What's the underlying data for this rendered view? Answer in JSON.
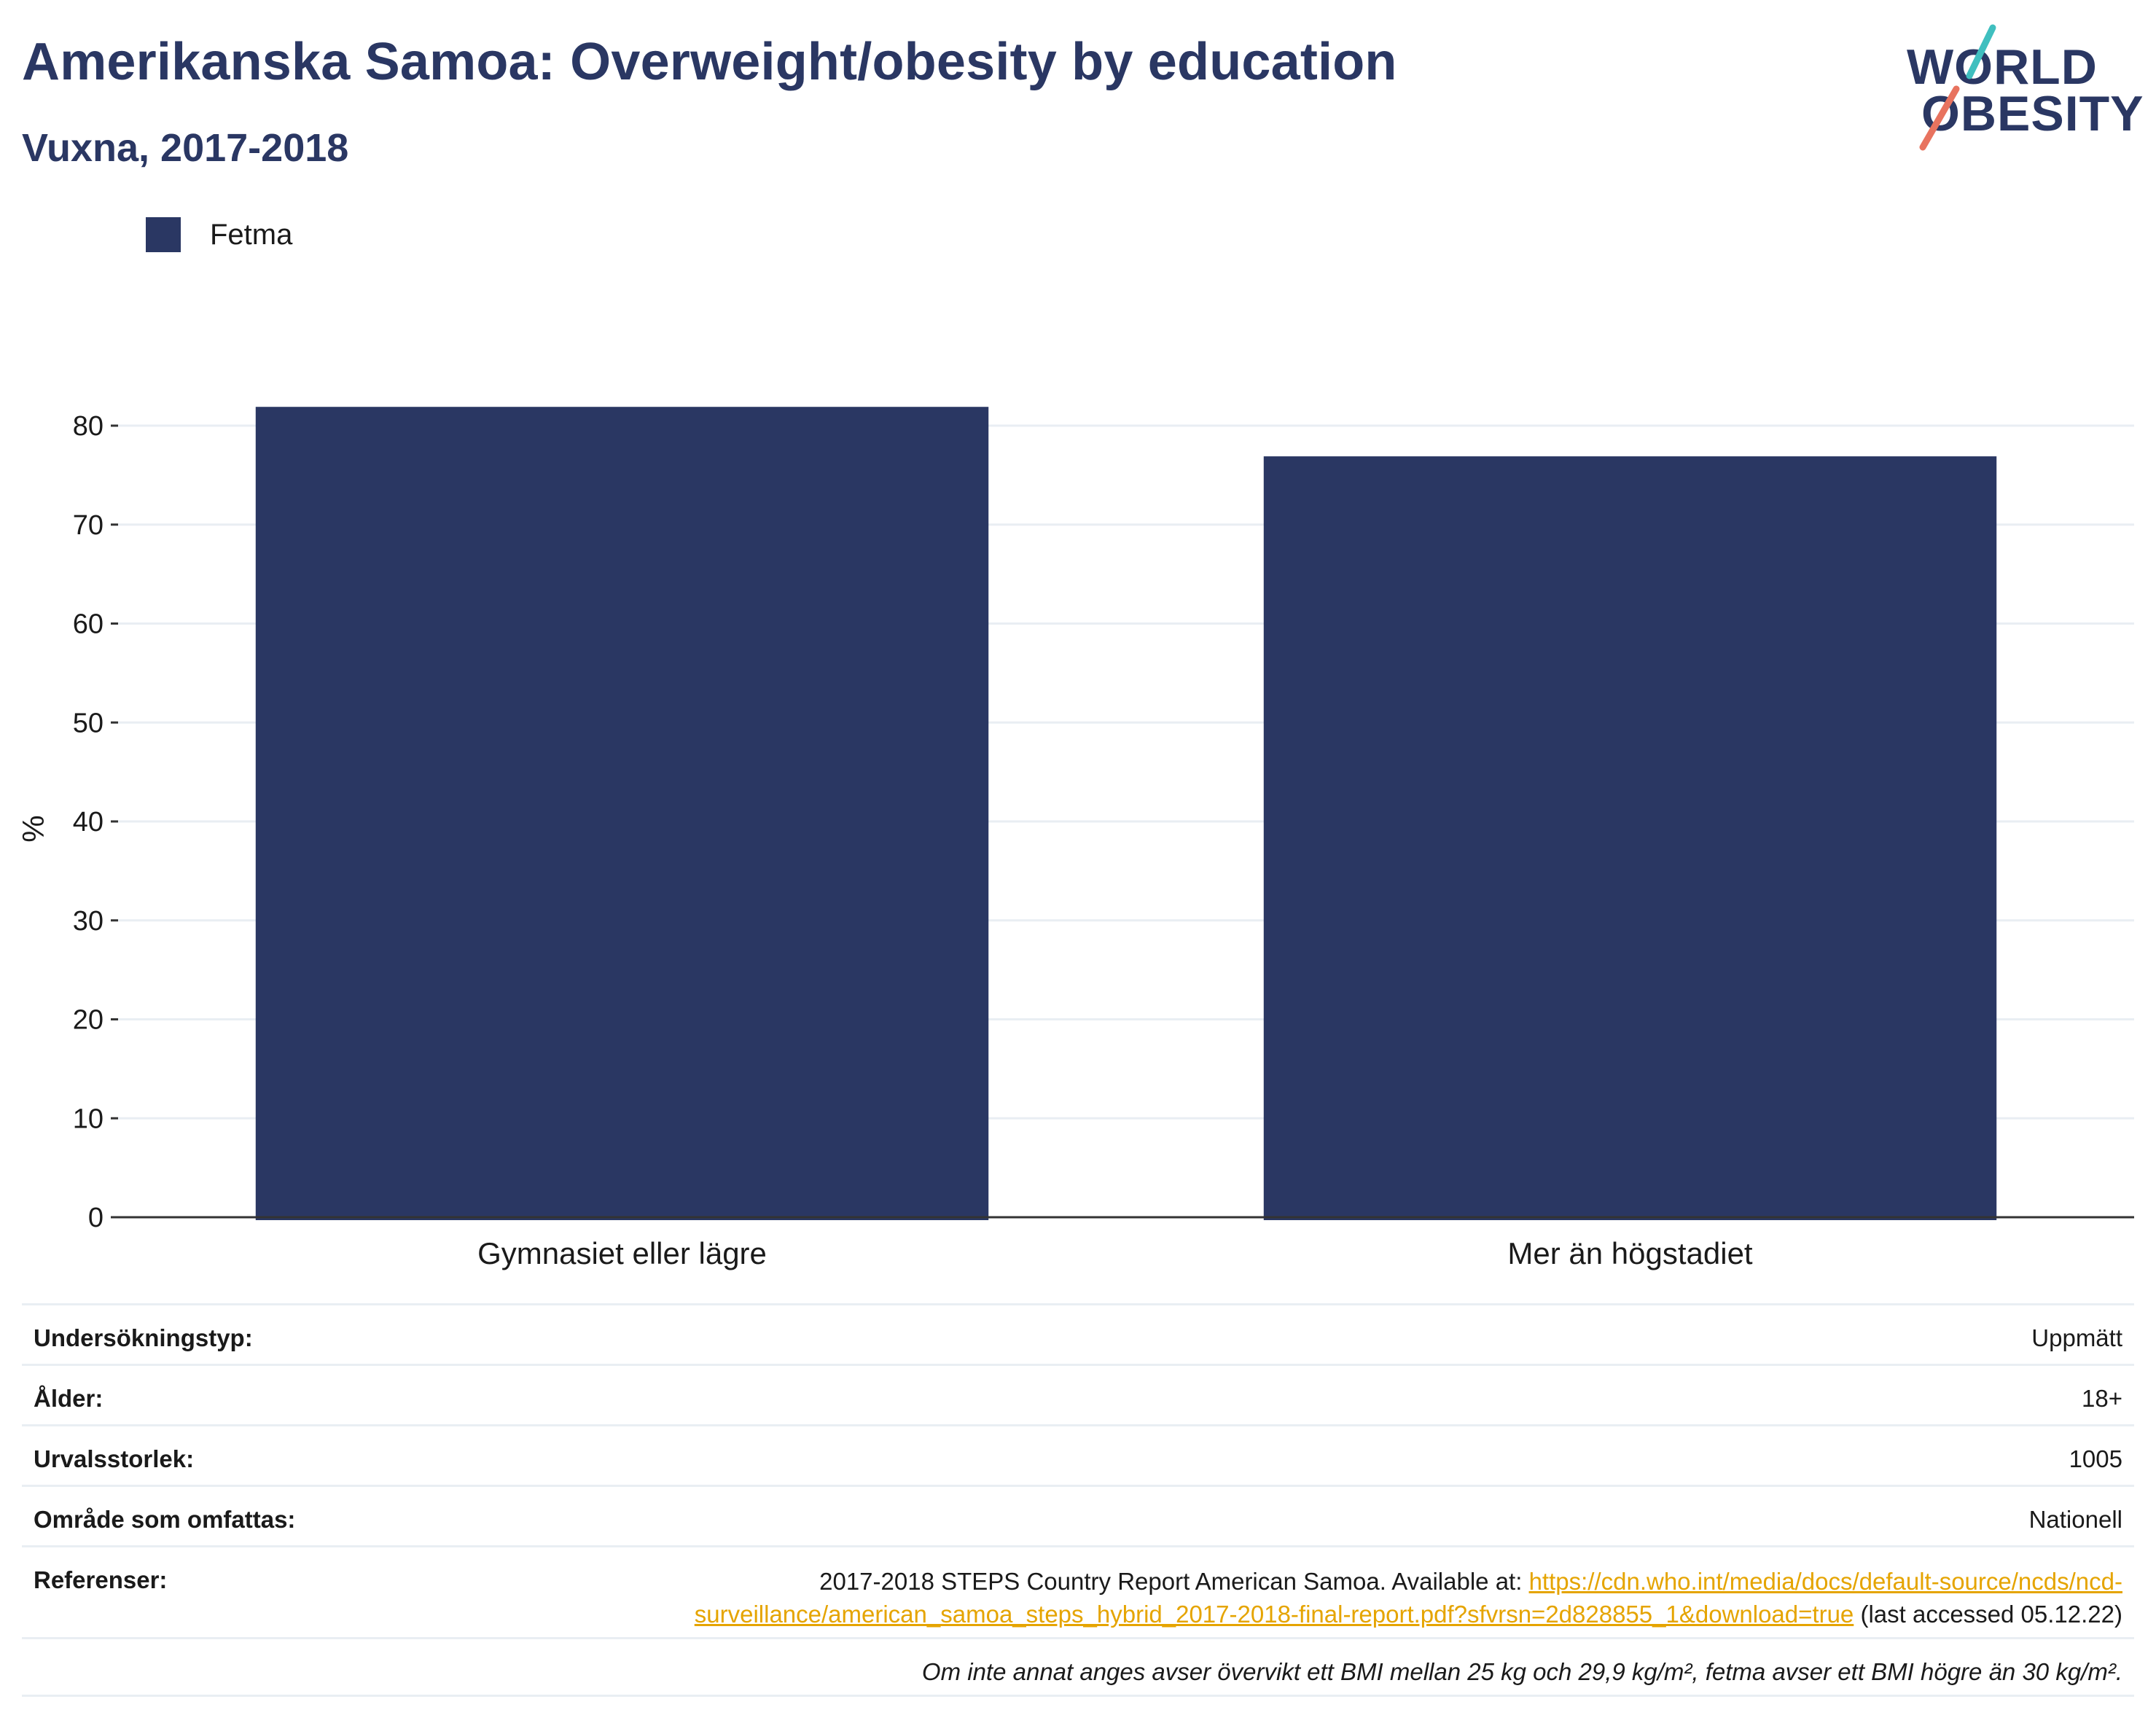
{
  "title": "Amerikanska Samoa: Overweight/obesity by education",
  "subtitle": "Vuxna, 2017-2018",
  "logo": {
    "line1": "WORLD",
    "line2": "OBESITY",
    "accent_colors": [
      "#3fbfbf",
      "#e8735f"
    ]
  },
  "colors": {
    "bar": "#2a3763",
    "title": "#2a3763",
    "grid": "#e9eef3",
    "link": "#e5a400"
  },
  "chart_data": {
    "type": "bar",
    "categories": [
      "Gymnasiet eller lägre",
      "Mer än högstadiet"
    ],
    "series": [
      {
        "name": "Fetma",
        "values": [
          81.9,
          76.9
        ]
      }
    ],
    "ylabel": "%",
    "ylim": [
      0,
      80
    ],
    "yticks": [
      0,
      10,
      20,
      30,
      40,
      50,
      60,
      70,
      80
    ],
    "grid": true,
    "legend_position": "top-left"
  },
  "info": {
    "survey_type_label": "Undersökningstyp:",
    "survey_type_value": "Uppmätt",
    "age_label": "Ålder:",
    "age_value": "18+",
    "sample_label": "Urvalsstorlek:",
    "sample_value": "1005",
    "area_label": "Område som omfattas:",
    "area_value": "Nationell",
    "references_label": "Referenser:",
    "references_prefix": "2017-2018 STEPS Country Report American Samoa. Available at: ",
    "references_link": "https://cdn.who.int/media/docs/default-source/ncds/ncd-surveillance/american_samoa_steps_hybrid_2017-2018-final-report.pdf?sfvrsn=2d828855_1&download=true",
    "references_suffix": " (last accessed 05.12.22)",
    "note": "Om inte annat anges avser övervikt ett BMI mellan 25 kg och 29,9 kg/m², fetma avser ett BMI högre än 30 kg/m²."
  }
}
